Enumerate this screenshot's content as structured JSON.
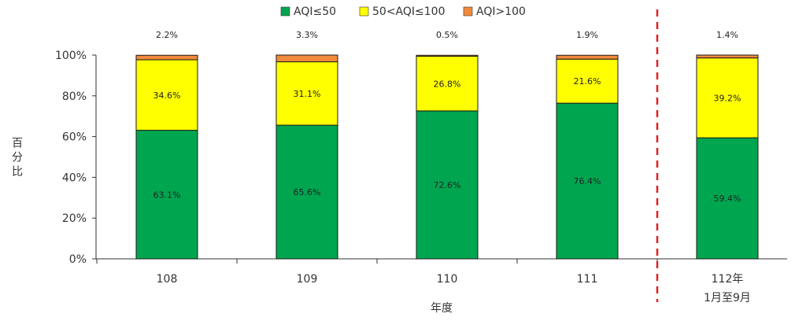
{
  "chart_data": {
    "type": "bar",
    "stacked": true,
    "categories": [
      [
        "108"
      ],
      [
        "109"
      ],
      [
        "110"
      ],
      [
        "111"
      ],
      [
        "112年",
        "1月至9月"
      ]
    ],
    "series": [
      {
        "name": "AQI≤50",
        "color": "#00a64f",
        "values": [
          63.1,
          65.6,
          72.6,
          76.4,
          59.4
        ],
        "labels": [
          "63.1%",
          "65.6%",
          "72.6%",
          "76.4%",
          "59.4%"
        ]
      },
      {
        "name": "50<AQI≤100",
        "color": "#ffff00",
        "values": [
          34.6,
          31.1,
          26.8,
          21.6,
          39.2
        ],
        "labels": [
          "34.6%",
          "31.1%",
          "26.8%",
          "21.6%",
          "39.2%"
        ]
      },
      {
        "name": "AQI>100",
        "color": "#f08a3c",
        "values": [
          2.2,
          3.3,
          0.5,
          1.9,
          1.4
        ],
        "labels": [
          "2.2%",
          "3.3%",
          "0.5%",
          "1.9%",
          "1.4%"
        ]
      }
    ],
    "yticks": [
      "0%",
      "20%",
      "40%",
      "60%",
      "80%",
      "100%"
    ],
    "ylim": [
      0,
      100
    ],
    "ylabel": "百分比",
    "xlabel": "年度",
    "legend_position": "top-center",
    "separator_line": {
      "after_category_index": 3,
      "color": "#e02020",
      "style": "dashed"
    },
    "grid": false
  }
}
